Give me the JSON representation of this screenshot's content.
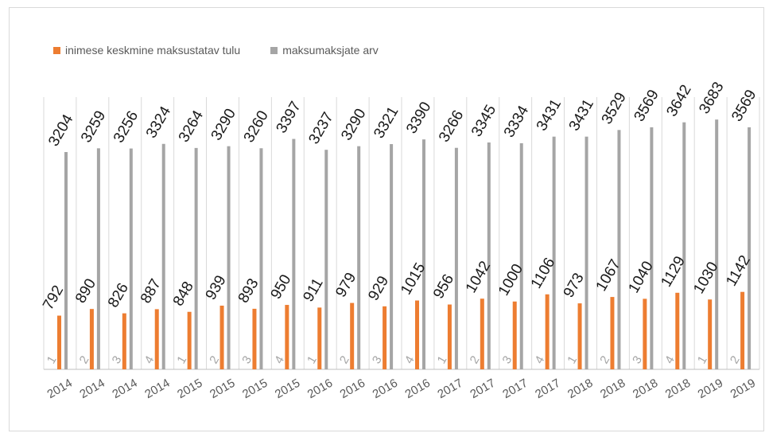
{
  "chart_data": {
    "type": "bar",
    "title": "",
    "xlabel": "",
    "ylabel": "",
    "categories": [
      "2014",
      "2014",
      "2014",
      "2014",
      "2015",
      "2015",
      "2015",
      "2015",
      "2016",
      "2016",
      "2016",
      "2016",
      "2017",
      "2017",
      "2017",
      "2017",
      "2018",
      "2018",
      "2018",
      "2018",
      "2019",
      "2019"
    ],
    "quarters": [
      "1",
      "2",
      "3",
      "4",
      "1",
      "2",
      "3",
      "4",
      "1",
      "2",
      "3",
      "4",
      "1",
      "2",
      "3",
      "4",
      "1",
      "2",
      "3",
      "4",
      "1",
      "2"
    ],
    "series": [
      {
        "name": "inimese keskmine maksustatav tulu",
        "color": "#ed7d31",
        "values": [
          792,
          890,
          826,
          887,
          848,
          939,
          893,
          950,
          911,
          979,
          929,
          1015,
          956,
          1042,
          1000,
          1106,
          973,
          1067,
          1040,
          1129,
          1030,
          1142
        ]
      },
      {
        "name": "maksumaksjate arv",
        "color": "#a5a5a5",
        "values": [
          3204,
          3259,
          3256,
          3324,
          3264,
          3290,
          3260,
          3397,
          3237,
          3290,
          3321,
          3390,
          3266,
          3345,
          3334,
          3431,
          3431,
          3529,
          3569,
          3642,
          3683,
          3569
        ]
      }
    ],
    "grid": "vertical",
    "legend": "top-left"
  }
}
